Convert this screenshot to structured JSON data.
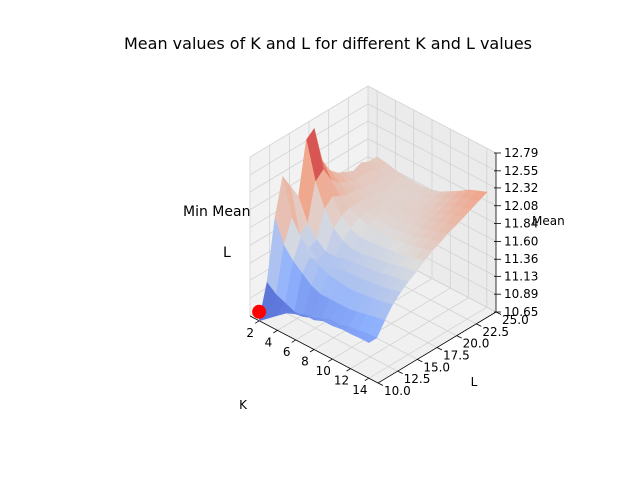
{
  "chart_data": {
    "type": "surface",
    "title": "Mean values of K and L for different K and L values",
    "xlabel": "K",
    "ylabel": "L",
    "zlabel": "Mean",
    "x_ticks": [
      "2",
      "4",
      "6",
      "8",
      "10",
      "12",
      "14"
    ],
    "y_ticks": [
      "10.0",
      "12.5",
      "15.0",
      "17.5",
      "20.0",
      "22.5",
      "25.0"
    ],
    "z_ticks": [
      "10.65",
      "10.89",
      "11.13",
      "11.36",
      "11.60",
      "11.84",
      "12.08",
      "12.32",
      "12.55",
      "12.79"
    ],
    "xlim": [
      1,
      15
    ],
    "ylim": [
      10,
      25
    ],
    "zlim": [
      10.65,
      12.79
    ],
    "colormap": "coolwarm",
    "annotation_text": "Min Mean",
    "annotation_partial": "L",
    "min_point": {
      "K": 2,
      "L": 10,
      "mean": 10.65,
      "color": "#ff0000"
    },
    "x_grid": [
      2,
      3,
      4,
      5,
      6,
      7,
      8,
      9,
      10,
      11,
      12,
      13,
      14
    ],
    "y_grid": [
      10,
      11,
      12,
      13,
      14,
      15,
      16,
      17,
      18,
      19,
      20,
      21,
      22,
      23,
      24,
      25
    ],
    "z_values": [
      [
        10.65,
        11.1,
        11.9,
        12.4,
        12.2,
        12.0,
        12.7,
        12.79,
        12.3,
        12.1,
        12.0,
        11.95,
        11.9,
        11.95,
        11.9,
        11.9
      ],
      [
        10.75,
        11.0,
        11.6,
        11.9,
        11.6,
        11.7,
        12.2,
        12.3,
        12.1,
        12.0,
        11.95,
        11.9,
        11.9,
        11.9,
        11.85,
        11.88
      ],
      [
        10.85,
        10.95,
        11.45,
        11.7,
        11.5,
        11.55,
        11.9,
        12.0,
        11.95,
        11.9,
        11.9,
        11.85,
        11.85,
        11.85,
        11.85,
        11.85
      ],
      [
        10.95,
        10.9,
        11.35,
        11.5,
        11.4,
        11.45,
        11.7,
        11.8,
        11.85,
        11.85,
        11.85,
        11.82,
        11.83,
        11.82,
        11.83,
        11.83
      ],
      [
        11.0,
        10.9,
        11.25,
        11.45,
        11.4,
        11.45,
        11.6,
        11.7,
        11.78,
        11.8,
        11.82,
        11.8,
        11.82,
        11.8,
        11.82,
        11.82
      ],
      [
        11.05,
        10.95,
        11.2,
        11.4,
        11.42,
        11.48,
        11.55,
        11.65,
        11.75,
        11.78,
        11.8,
        11.8,
        11.81,
        11.8,
        11.81,
        11.82
      ],
      [
        11.05,
        11.0,
        11.2,
        11.38,
        11.45,
        11.5,
        11.55,
        11.65,
        11.72,
        11.76,
        11.8,
        11.82,
        11.82,
        11.82,
        11.82,
        11.84
      ],
      [
        11.1,
        11.05,
        11.2,
        11.36,
        11.45,
        11.52,
        11.58,
        11.66,
        11.72,
        11.76,
        11.8,
        11.82,
        11.83,
        11.84,
        11.85,
        11.88
      ],
      [
        11.1,
        11.05,
        11.2,
        11.36,
        11.46,
        11.53,
        11.6,
        11.68,
        11.74,
        11.78,
        11.82,
        11.84,
        11.86,
        11.88,
        11.92,
        11.95
      ],
      [
        11.12,
        11.08,
        11.22,
        11.38,
        11.48,
        11.55,
        11.62,
        11.7,
        11.76,
        11.8,
        11.84,
        11.87,
        11.9,
        11.94,
        11.98,
        12.02
      ],
      [
        11.12,
        11.1,
        11.25,
        11.4,
        11.5,
        11.58,
        11.65,
        11.72,
        11.78,
        11.84,
        11.88,
        11.92,
        11.96,
        12.0,
        12.05,
        12.1
      ],
      [
        11.13,
        11.12,
        11.28,
        11.42,
        11.52,
        11.6,
        11.68,
        11.75,
        11.82,
        11.88,
        11.92,
        11.97,
        12.02,
        12.06,
        12.1,
        12.15
      ],
      [
        11.13,
        11.13,
        11.3,
        11.45,
        11.55,
        11.63,
        11.7,
        11.78,
        11.85,
        11.9,
        11.96,
        12.0,
        12.05,
        12.1,
        12.15,
        12.2
      ]
    ]
  }
}
